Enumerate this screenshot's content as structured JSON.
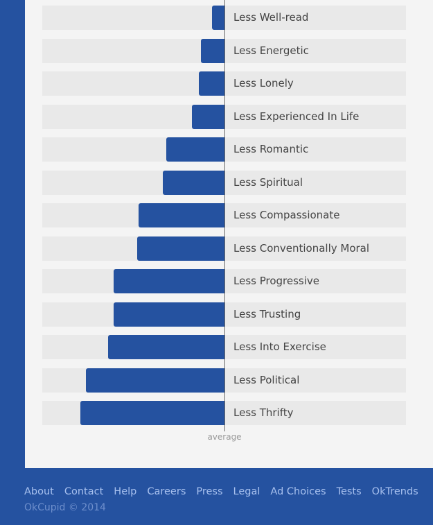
{
  "chart_data": {
    "type": "bar",
    "orientation": "horizontal",
    "categories": [
      "Less Well-read",
      "Less Energetic",
      "Less Lonely",
      "Less Experienced In Life",
      "Less Romantic",
      "Less Spiritual",
      "Less Compassionate",
      "Less Conventionally Moral",
      "Less Progressive",
      "Less Trusting",
      "Less Into Exercise",
      "Less Political",
      "Less Thrifty"
    ],
    "values": [
      -0.07,
      -0.13,
      -0.14,
      -0.18,
      -0.32,
      -0.34,
      -0.47,
      -0.48,
      -0.61,
      -0.61,
      -0.64,
      -0.76,
      -0.79
    ],
    "baseline_label": "average",
    "xlim": [
      -1,
      1
    ],
    "grid": false,
    "colors": {
      "bar": "#2552a0",
      "row_background": "#e9e9e9",
      "axis": "#666666"
    }
  },
  "footer": {
    "links": [
      "About",
      "Contact",
      "Help",
      "Careers",
      "Press",
      "Legal",
      "Ad Choices",
      "Tests",
      "OkTrends"
    ],
    "copyright": "OkCupid © 2014"
  },
  "colors": {
    "brand_blue": "#2552a0",
    "panel": "#f4f4f4",
    "link": "#a7c0ee"
  }
}
